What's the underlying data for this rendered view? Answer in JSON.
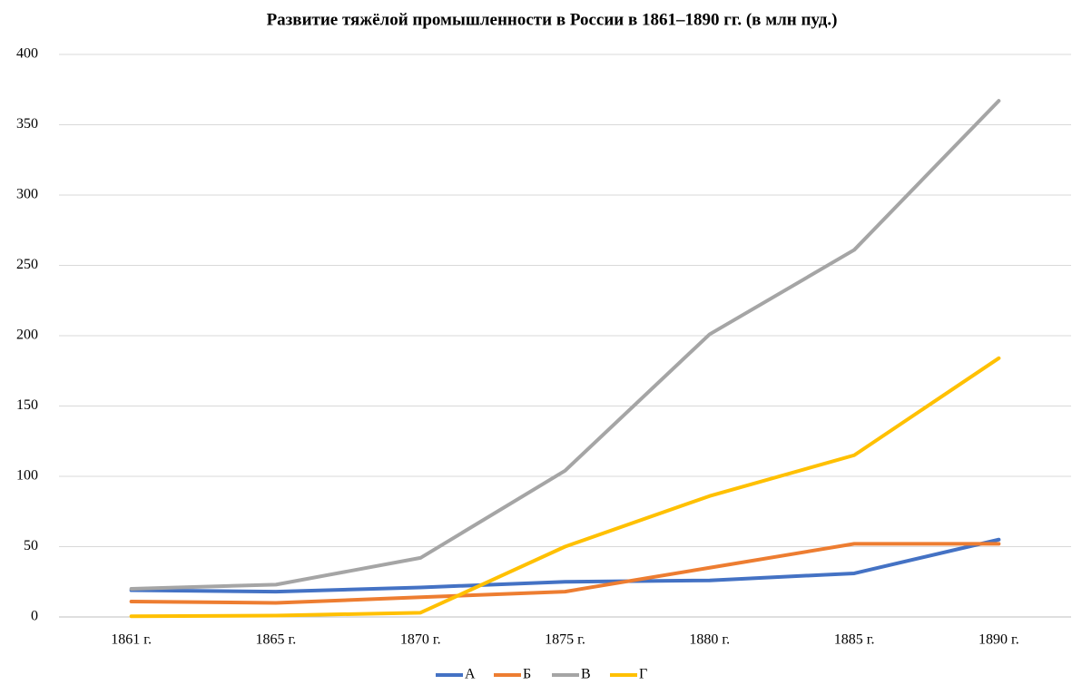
{
  "chart_data": {
    "type": "line",
    "title": "Развитие тяжёлой промышленности в России в 1861–1890 гг. (в млн  пуд.)",
    "categories": [
      "1861 г.",
      "1865 г.",
      "1870 г.",
      "1875 г.",
      "1880 г.",
      "1885 г.",
      "1890 г."
    ],
    "series": [
      {
        "name": "А",
        "color": "#4472c4",
        "values": [
          19,
          18,
          21,
          25,
          26,
          31,
          55
        ]
      },
      {
        "name": "Б",
        "color": "#ed7d31",
        "values": [
          11,
          10,
          14,
          18,
          35,
          52,
          52
        ]
      },
      {
        "name": "В",
        "color": "#a5a5a5",
        "values": [
          20,
          23,
          42,
          104,
          201,
          261,
          367
        ]
      },
      {
        "name": "Г",
        "color": "#ffc000",
        "values": [
          0.5,
          1,
          3,
          50,
          86,
          115,
          184
        ]
      }
    ],
    "ylim": [
      0,
      400
    ],
    "yticks": [
      0,
      50,
      100,
      150,
      200,
      250,
      300,
      350,
      400
    ],
    "grid": true,
    "legend": "bottom"
  }
}
